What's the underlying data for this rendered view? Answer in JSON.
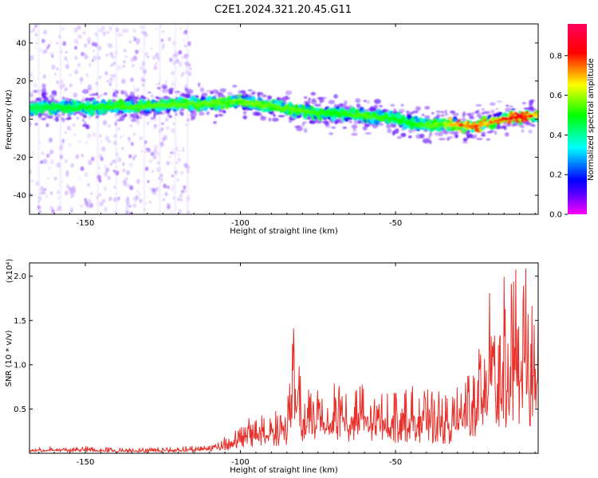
{
  "title": "C2E1.2024.321.20.45.G11",
  "chart_data": [
    {
      "type": "heatmap",
      "xlabel": "Height of straight line (km)",
      "ylabel": "Frequency (Hz)",
      "xlim": [
        -168,
        -4
      ],
      "ylim": [
        -50,
        50
      ],
      "xticks": [
        -150,
        -100,
        -50
      ],
      "yticks": [
        -40,
        -20,
        0,
        20,
        40
      ],
      "colorbar": {
        "label": "Normalized spectral amplitude",
        "range": [
          0,
          0.96
        ],
        "ticks": [
          0.0,
          0.2,
          0.4,
          0.6,
          0.8
        ],
        "stops": [
          "#ff00ff",
          "#6000ff",
          "#0000ff",
          "#00ffff",
          "#00ff00",
          "#ffff00",
          "#ff0000",
          "#ff0060"
        ]
      },
      "ridge": {
        "x": [
          -168,
          -150,
          -130,
          -115,
          -100,
          -90,
          -80,
          -70,
          -60,
          -50,
          -45,
          -40,
          -35,
          -30,
          -25,
          -20,
          -15,
          -10,
          -4
        ],
        "frequency": [
          6,
          6,
          7,
          8,
          9,
          7,
          4,
          3,
          2,
          0,
          -2,
          -3,
          -3,
          -3,
          -4,
          -2,
          0,
          1,
          2
        ],
        "peak_amplitude": [
          0.45,
          0.5,
          0.55,
          0.55,
          0.6,
          0.55,
          0.55,
          0.5,
          0.55,
          0.5,
          0.5,
          0.55,
          0.6,
          0.8,
          0.85,
          0.75,
          0.85,
          0.95,
          0.7
        ]
      },
      "background_scatter": {
        "x_range": [
          -168,
          -116
        ],
        "frequency_range": [
          -50,
          50
        ],
        "amplitude": 0.05
      }
    },
    {
      "type": "line",
      "xlabel": "Height of straight line (km)",
      "ylabel": "SNR (10 * v/v)",
      "y_multiplier": "(x10⁴)",
      "xlim": [
        -168,
        -4
      ],
      "ylim": [
        0,
        2.15
      ],
      "xticks": [
        -150,
        -100,
        -50
      ],
      "yticks": [
        0.5,
        1.0,
        1.5,
        2.0
      ],
      "ytick_labels": [
        "0.5",
        "1.0",
        "1.5",
        "2.0"
      ],
      "color": "#e8302a",
      "series": [
        {
          "x": [
            -168,
            -160,
            -150,
            -140,
            -130,
            -120,
            -112,
            -108,
            -104,
            -100,
            -96,
            -92,
            -88,
            -85,
            -83,
            -80,
            -76,
            -72,
            -68,
            -64,
            -60,
            -56,
            -52,
            -48,
            -44,
            -40,
            -36,
            -32,
            -28,
            -26,
            -24,
            -22,
            -20,
            -19,
            -18,
            -17,
            -16,
            -15,
            -14,
            -12,
            -10,
            -8,
            -6,
            -4
          ],
          "values": [
            0.04,
            0.05,
            0.05,
            0.04,
            0.04,
            0.05,
            0.06,
            0.09,
            0.14,
            0.2,
            0.28,
            0.3,
            0.33,
            0.38,
            1.0,
            0.45,
            0.55,
            0.5,
            0.6,
            0.48,
            0.52,
            0.46,
            0.5,
            0.45,
            0.5,
            0.47,
            0.45,
            0.42,
            0.55,
            0.7,
            0.65,
            0.9,
            1.2,
            2.15,
            0.9,
            1.05,
            0.8,
            1.3,
            1.0,
            1.5,
            1.2,
            1.35,
            1.1,
            1.05
          ]
        }
      ]
    }
  ]
}
